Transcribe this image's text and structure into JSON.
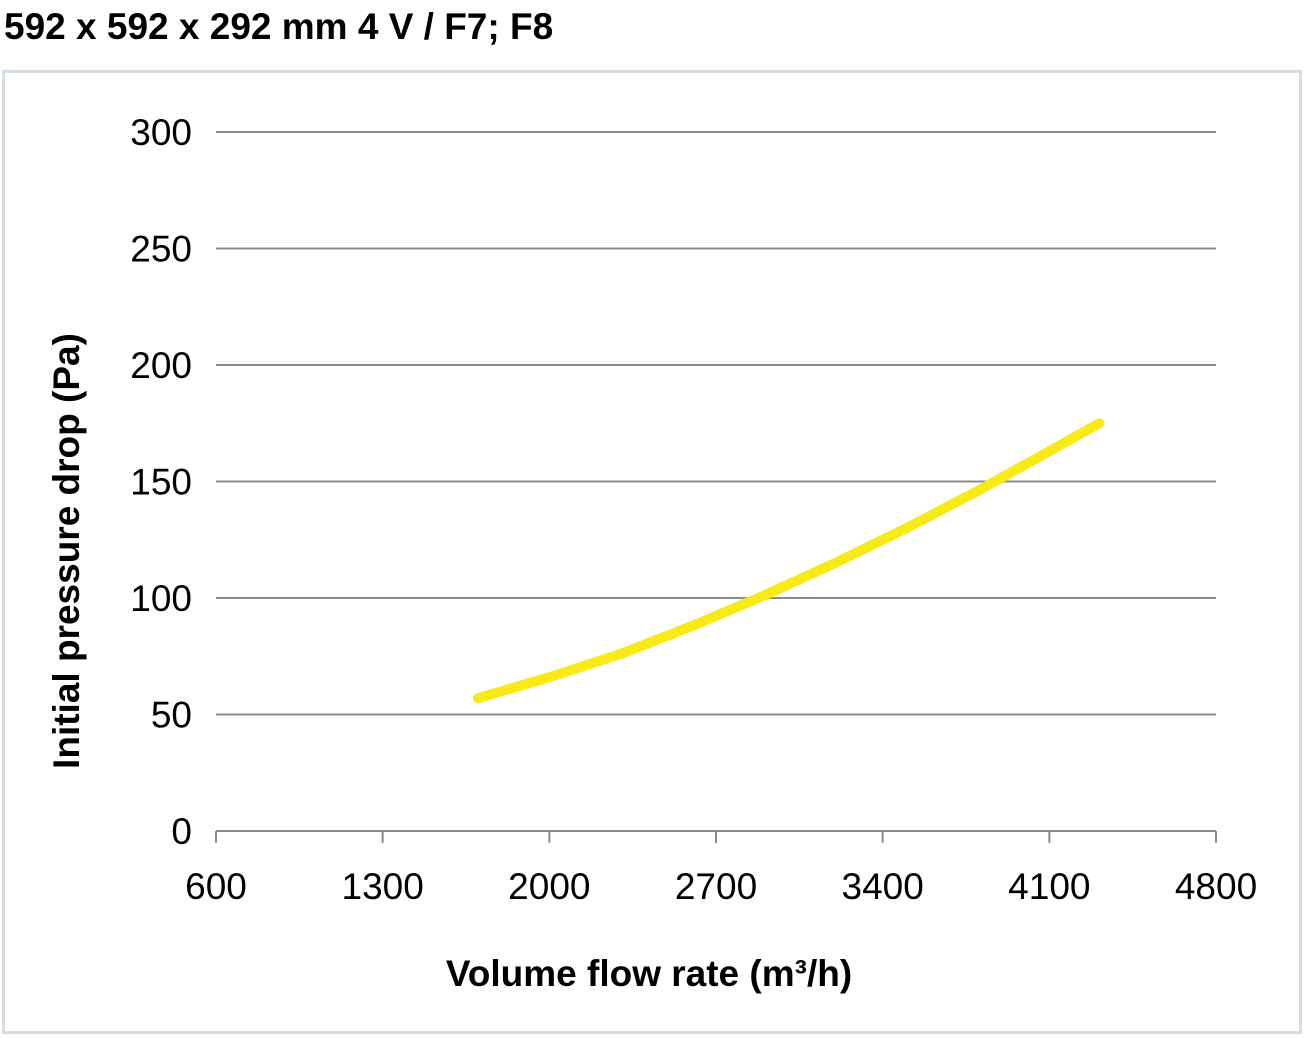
{
  "title": "592 x 592 x 292 mm 4 V / F7; F8",
  "colors": {
    "line": "#f7ea17",
    "grid": "#8c8c8c",
    "frame": "#d5dde4"
  },
  "chart_data": {
    "type": "line",
    "title": "592 x 592 x 292 mm 4 V / F7; F8",
    "xlabel": "Volume flow rate (m³/h)",
    "ylabel": "Initial pressure drop (Pa)",
    "xlim": [
      600,
      4800
    ],
    "ylim": [
      0,
      300
    ],
    "xticks": [
      600,
      1300,
      2000,
      2700,
      3400,
      4100,
      4800
    ],
    "yticks": [
      0,
      50,
      100,
      150,
      200,
      250,
      300
    ],
    "grid": "horizontal",
    "series": [
      {
        "x": [
          1700,
          2000,
          2300,
          2600,
          2900,
          3200,
          3500,
          3800,
          4100,
          4310
        ],
        "values": [
          57,
          66,
          76,
          88,
          101,
          115,
          130,
          146,
          163,
          175
        ]
      }
    ]
  }
}
